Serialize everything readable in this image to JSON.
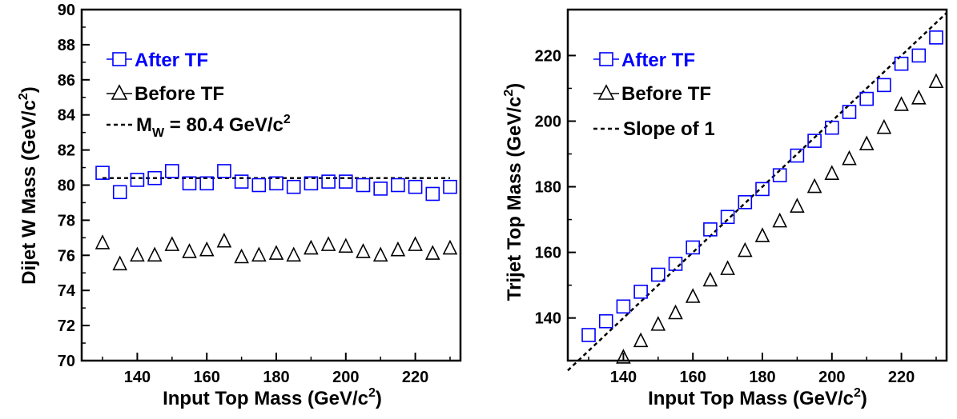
{
  "chart_data": [
    {
      "type": "scatter",
      "title": "",
      "xlabel": "Input Top Mass (GeV/c",
      "xlabel_sup": "2",
      "xlabel_end": ")",
      "ylabel": "Dijet W Mass (GeV/c",
      "ylabel_sup": "2",
      "ylabel_end": ")",
      "xlim": [
        124,
        233
      ],
      "ylim": [
        70,
        90
      ],
      "xticks": [
        "140",
        "160",
        "180",
        "200",
        "220"
      ],
      "yticks": [
        "70",
        "72",
        "74",
        "76",
        "78",
        "80",
        "82",
        "84",
        "86",
        "88",
        "90"
      ],
      "grid": false,
      "legend_position": "top-left",
      "x": [
        130,
        135,
        140,
        145,
        150,
        155,
        160,
        165,
        170,
        175,
        180,
        185,
        190,
        195,
        200,
        205,
        210,
        215,
        220,
        225,
        230
      ],
      "series": [
        {
          "name": "After TF",
          "marker": "square",
          "color": "#0000ff",
          "values": [
            80.7,
            79.6,
            80.3,
            80.4,
            80.8,
            80.1,
            80.1,
            80.8,
            80.2,
            80.0,
            80.1,
            79.9,
            80.1,
            80.2,
            80.2,
            80.0,
            79.8,
            80.0,
            79.9,
            79.5,
            79.9
          ]
        },
        {
          "name": "Before TF",
          "marker": "triangle",
          "color": "#000000",
          "values": [
            76.7,
            75.5,
            76.0,
            76.0,
            76.6,
            76.2,
            76.3,
            76.8,
            75.9,
            76.0,
            76.1,
            76.0,
            76.4,
            76.6,
            76.5,
            76.2,
            76.0,
            76.3,
            76.6,
            76.1,
            76.4
          ]
        }
      ],
      "reference_line": {
        "label_main": "M",
        "label_sub": "W",
        "label_rest": " = 80.4 GeV/c",
        "label_sup": "2",
        "kind": "horizontal",
        "value": 80.4,
        "from_x": 130,
        "to_x": 230
      }
    },
    {
      "type": "scatter",
      "title": "",
      "xlabel": "Input Top Mass (GeV/c",
      "xlabel_sup": "2",
      "xlabel_end": ")",
      "ylabel": "Trijet Top Mass (GeV/c",
      "ylabel_sup": "2",
      "ylabel_end": ")",
      "xlim": [
        124,
        233
      ],
      "ylim": [
        127,
        234
      ],
      "xticks": [
        "140",
        "160",
        "180",
        "200",
        "220"
      ],
      "yticks": [
        "140",
        "160",
        "180",
        "200",
        "220"
      ],
      "grid": false,
      "legend_position": "top-left",
      "x": [
        130,
        135,
        140,
        145,
        150,
        155,
        160,
        165,
        170,
        175,
        180,
        185,
        190,
        195,
        200,
        205,
        210,
        215,
        220,
        225,
        230
      ],
      "series": [
        {
          "name": "After TF",
          "marker": "square",
          "color": "#0000ff",
          "values": [
            134.8,
            139.0,
            143.5,
            148.0,
            153.2,
            156.5,
            161.5,
            167.0,
            170.8,
            175.3,
            179.3,
            183.5,
            189.5,
            194.0,
            198.0,
            202.8,
            206.8,
            211.0,
            217.5,
            220.0,
            225.5
          ]
        },
        {
          "name": "Before TF",
          "marker": "triangle",
          "color": "#000000",
          "values": [
            null,
            null,
            128.0,
            133.0,
            138.0,
            141.5,
            146.5,
            151.5,
            155.0,
            160.5,
            165.0,
            169.5,
            174.0,
            180.0,
            184.0,
            188.5,
            193.0,
            198.0,
            205.0,
            207.0,
            212.0
          ]
        }
      ],
      "reference_line": {
        "label": "Slope of 1",
        "kind": "diagonal",
        "slope": 1
      }
    }
  ]
}
